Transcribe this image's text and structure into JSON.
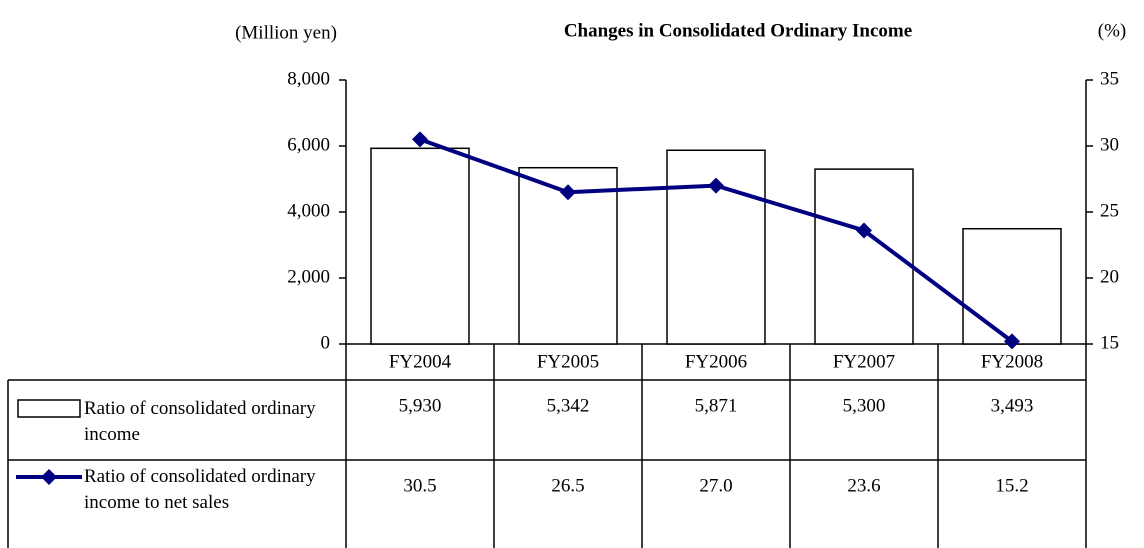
{
  "chart_data": {
    "type": "bar-line",
    "title": "Changes in Consolidated Ordinary Income",
    "y_label": "(Million yen)",
    "y2_label": "(%)",
    "categories": [
      "FY2004",
      "FY2005",
      "FY2006",
      "FY2007",
      "FY2008"
    ],
    "series": [
      {
        "name": "Ratio of consolidated ordinary income",
        "type": "bar",
        "color": "#ffffff",
        "values": [
          5930,
          5342,
          5871,
          5300,
          3493
        ],
        "value_labels": [
          "5,930",
          "5,342",
          "5,871",
          "5,300",
          "3,493"
        ]
      },
      {
        "name": "Ratio of consolidated ordinary income to net sales",
        "type": "line",
        "color": "#000080",
        "axis": "y2",
        "values": [
          30.5,
          26.5,
          27.0,
          23.6,
          15.2
        ],
        "value_labels": [
          "30.5",
          "26.5",
          "27.0",
          "23.6",
          "15.2"
        ]
      }
    ],
    "ylim": [
      0,
      8000
    ],
    "yticks": [
      0,
      {
        "value": 2000,
        "label": "2,000"
      },
      {
        "value": 4000,
        "label": "4,000"
      },
      {
        "value": 6000,
        "label": "6,000"
      },
      {
        "value": 8000,
        "label": "8,000"
      }
    ],
    "y2lim": [
      15,
      35
    ],
    "y2ticks": [
      15,
      20,
      25,
      30,
      35
    ],
    "grid": false
  }
}
